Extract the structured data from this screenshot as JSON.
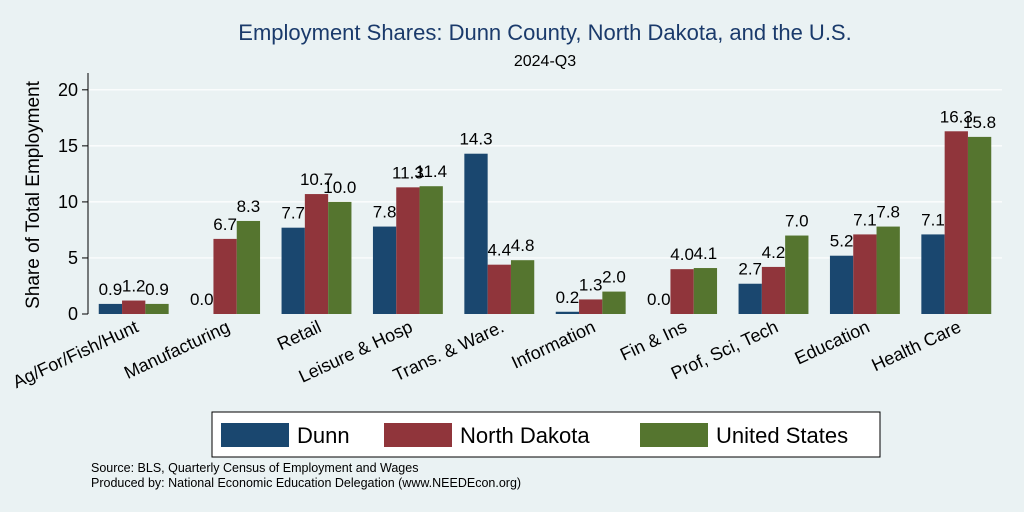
{
  "chart_data": {
    "type": "bar",
    "title": "Employment Shares: Dunn County, North Dakota, and the U.S.",
    "subtitle": "2024-Q3",
    "ylabel": "Share of Total Employment",
    "ylim": [
      0,
      21.5
    ],
    "yticks": [
      0,
      5,
      10,
      15,
      20
    ],
    "grid": "horizontal",
    "legend_position": "bottom",
    "categories": [
      "Ag/For/Fish/Hunt",
      "Manufacturing",
      "Retail",
      "Leisure & Hosp",
      "Trans. & Ware.",
      "Information",
      "Fin & Ins",
      "Prof, Sci, Tech",
      "Education",
      "Health Care"
    ],
    "series": [
      {
        "name": "Dunn",
        "color": "#1a476f",
        "values": [
          0.9,
          0.0,
          7.7,
          7.8,
          14.3,
          0.2,
          0.0,
          2.7,
          5.2,
          7.1
        ],
        "labels": [
          "0.9",
          "0.0",
          "7.7",
          "7.8",
          "14.3",
          "0.2",
          "0.0",
          "2.7",
          "5.2",
          "7.1"
        ]
      },
      {
        "name": "North Dakota",
        "color": "#90353b",
        "values": [
          1.2,
          6.7,
          10.7,
          11.3,
          4.4,
          1.3,
          4.0,
          4.2,
          7.1,
          16.3
        ],
        "labels": [
          "1.2",
          "6.7",
          "10.7",
          "11.3",
          "4.4",
          "1.3",
          "4.0",
          "4.2",
          "7.1",
          "16.3"
        ]
      },
      {
        "name": "United States",
        "color": "#55752f",
        "values": [
          0.9,
          8.3,
          10.0,
          11.4,
          4.8,
          2.0,
          4.1,
          7.0,
          7.8,
          15.8
        ],
        "labels": [
          "0.9",
          "8.3",
          "10.0",
          "11.4",
          "4.8",
          "2.0",
          "4.1",
          "7.0",
          "7.8",
          "15.8"
        ]
      }
    ]
  },
  "notes": {
    "source": "Source: BLS, Quarterly Census of Employment and Wages",
    "produced_by": "Produced by: National Economic Education Delegation (www.NEEDEcon.org)"
  }
}
